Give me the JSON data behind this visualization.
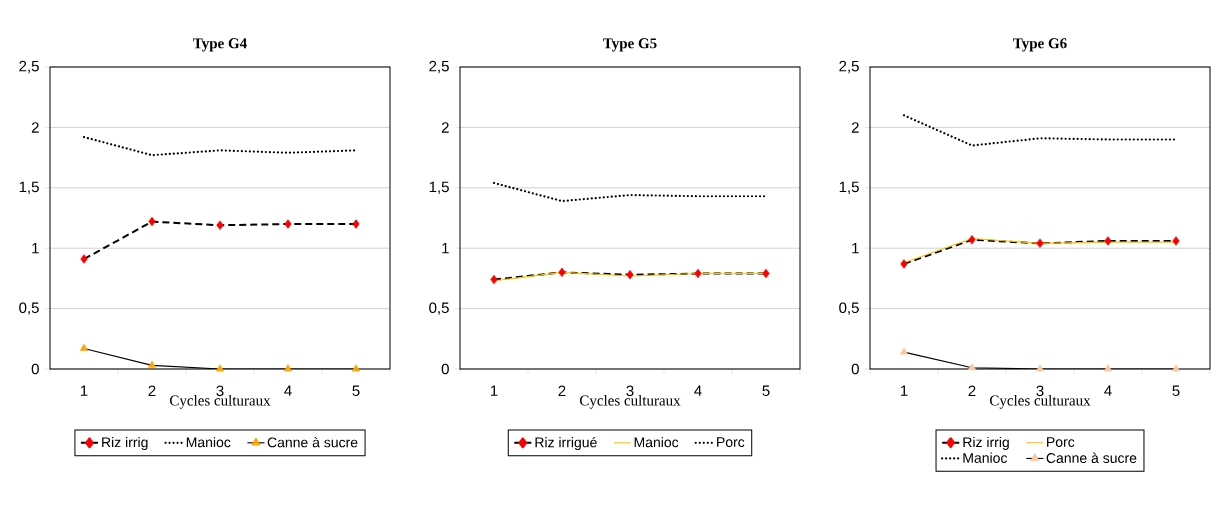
{
  "chart_data": [
    {
      "type": "line",
      "title": "Type G4",
      "xlabel": "Cycles culturaux",
      "categories": [
        "1",
        "2",
        "3",
        "4",
        "5"
      ],
      "ylim": [
        0,
        2.5
      ],
      "yticks": [
        0,
        {
          "value": 0.5,
          "label": "0,5"
        },
        1,
        {
          "value": 1.5,
          "label": "1,5"
        },
        2,
        {
          "value": 2.5,
          "label": "2,5"
        }
      ],
      "grid": "y",
      "legend": "bottom",
      "series": [
        {
          "name": "Riz irrig",
          "color": "#000000",
          "colors": [
            "#ff0000",
            "#ff0000",
            "#ff0000",
            "#ff0000",
            "#ff0000"
          ],
          "marker": "diamond",
          "line_style": "dashed",
          "values": [
            0.91,
            1.22,
            1.19,
            1.2,
            1.2
          ]
        },
        {
          "name": "Manioc",
          "color": "#000000",
          "marker": "none",
          "line_style": "dotted",
          "values": [
            1.92,
            1.77,
            1.81,
            1.79,
            1.81
          ]
        },
        {
          "name": "Canne à sucre",
          "color": "#000000",
          "colors": [
            "#ffa500",
            "#ffa500",
            "#ffa500",
            "#ffa500",
            "#ffa500"
          ],
          "marker": "triangle",
          "line_style": "solid",
          "values": [
            0.17,
            0.03,
            0,
            0,
            0
          ]
        }
      ]
    },
    {
      "type": "line",
      "title": "Type G5",
      "xlabel": "Cycles culturaux",
      "categories": [
        "1",
        "2",
        "3",
        "4",
        "5"
      ],
      "ylim": [
        0,
        2.5
      ],
      "yticks": [
        0,
        {
          "value": 0.5,
          "label": "0,5"
        },
        1,
        {
          "value": 1.5,
          "label": "1,5"
        },
        2,
        {
          "value": 2.5,
          "label": "2,5"
        }
      ],
      "grid": "y",
      "legend": "bottom",
      "series": [
        {
          "name": "Riz irrigué",
          "color": "#000000",
          "colors": [
            "#ff0000",
            "#ff0000",
            "#ff0000",
            "#ff0000",
            "#ff0000"
          ],
          "marker": "diamond",
          "line_style": "dashed",
          "values": [
            0.74,
            0.8,
            0.78,
            0.79,
            0.79
          ]
        },
        {
          "name": "Manioc",
          "color": "#ffc000",
          "marker": "none",
          "line_style": "solid",
          "values": [
            0.73,
            0.8,
            0.77,
            0.79,
            0.79
          ]
        },
        {
          "name": "Porc",
          "color": "#000000",
          "marker": "none",
          "line_style": "dotted",
          "values": [
            1.54,
            1.39,
            1.44,
            1.43,
            1.43
          ]
        }
      ]
    },
    {
      "type": "line",
      "title": "Type G6",
      "xlabel": "Cycles culturaux",
      "categories": [
        "1",
        "2",
        "3",
        "4",
        "5"
      ],
      "ylim": [
        0,
        2.5
      ],
      "yticks": [
        0,
        {
          "value": 0.5,
          "label": "0,5"
        },
        1,
        {
          "value": 1.5,
          "label": "1,5"
        },
        2,
        {
          "value": 2.5,
          "label": "2,5"
        }
      ],
      "grid": "y",
      "legend": "bottom",
      "series": [
        {
          "name": "Riz irrig",
          "color": "#000000",
          "colors": [
            "#ff0000",
            "#ff0000",
            "#ff0000",
            "#ff0000",
            "#ff0000"
          ],
          "marker": "diamond",
          "line_style": "dashed",
          "values": [
            0.87,
            1.07,
            1.04,
            1.06,
            1.06
          ]
        },
        {
          "name": "Porc",
          "color": "#ffc000",
          "marker": "none",
          "line_style": "solid",
          "values": [
            0.88,
            1.08,
            1.04,
            1.05,
            1.05
          ]
        },
        {
          "name": "Manioc",
          "color": "#000000",
          "marker": "none",
          "line_style": "dotted",
          "values": [
            2.1,
            1.85,
            1.91,
            1.9,
            1.9
          ]
        },
        {
          "name": "Canne à sucre",
          "color": "#000000",
          "colors": [
            "#f8c8a0",
            "#f8c8a0",
            "#f8c8a0",
            "#f8c8a0",
            "#f8c8a0"
          ],
          "marker": "triangle",
          "line_style": "solid",
          "values": [
            0.14,
            0.01,
            0,
            0,
            0
          ]
        }
      ]
    }
  ]
}
